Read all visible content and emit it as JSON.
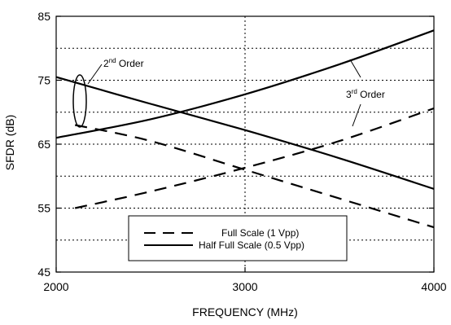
{
  "chart_data": {
    "type": "line",
    "xlabel": "FREQUENCY (MHz)",
    "ylabel": "SFDR (dB)",
    "xlim": [
      2000,
      4000
    ],
    "ylim": [
      45,
      85
    ],
    "x_ticks": [
      2000,
      3000,
      4000
    ],
    "y_ticks": [
      45,
      55,
      65,
      75,
      85
    ],
    "x_tick_labels": [
      "2000",
      "3000",
      "4000"
    ],
    "y_tick_labels": [
      "45",
      "55",
      "65",
      "75",
      "85"
    ],
    "grid": {
      "horizontal_dotted_at": [
        50,
        55,
        60,
        65,
        70,
        75,
        80
      ],
      "vertical_dotted_at": [
        3000
      ]
    },
    "series": [
      {
        "name": "Half Full Scale (0.5 Vpp) 2nd Order",
        "style": "solid",
        "x": [
          2000,
          2500,
          3000,
          3500,
          4000
        ],
        "y": [
          75.5,
          71.3,
          67.2,
          62.8,
          58.0
        ]
      },
      {
        "name": "Half Full Scale (0.5 Vpp) 3rd Order",
        "style": "solid",
        "x": [
          2000,
          2500,
          3000,
          3500,
          4000
        ],
        "y": [
          66.0,
          68.9,
          72.8,
          77.5,
          82.8
        ]
      },
      {
        "name": "Full Scale (1 Vpp) 2nd Order",
        "style": "dashed",
        "x": [
          2100,
          2500,
          3000,
          3500,
          4000
        ],
        "y": [
          68.0,
          65.5,
          61.0,
          56.5,
          52.0
        ]
      },
      {
        "name": "Full Scale (1 Vpp) 3rd Order",
        "style": "dashed",
        "x": [
          2100,
          2500,
          3000,
          3500,
          4000
        ],
        "y": [
          55.0,
          57.6,
          61.3,
          65.5,
          70.6
        ]
      }
    ],
    "annotations": [
      {
        "id": "second",
        "base": "2",
        "sup": "nd",
        "rest": " Order"
      },
      {
        "id": "third",
        "base": "3",
        "sup": "rd",
        "rest": " Order"
      }
    ],
    "legend": {
      "placement": "bottom-center",
      "entries": [
        {
          "label": "Full Scale (1 Vpp)",
          "style": "dashed"
        },
        {
          "label": "Half Full Scale (0.5 Vpp)",
          "style": "solid"
        }
      ]
    },
    "colors": {
      "lines": "#000000",
      "grid": "#000000",
      "background": "#ffffff"
    }
  }
}
